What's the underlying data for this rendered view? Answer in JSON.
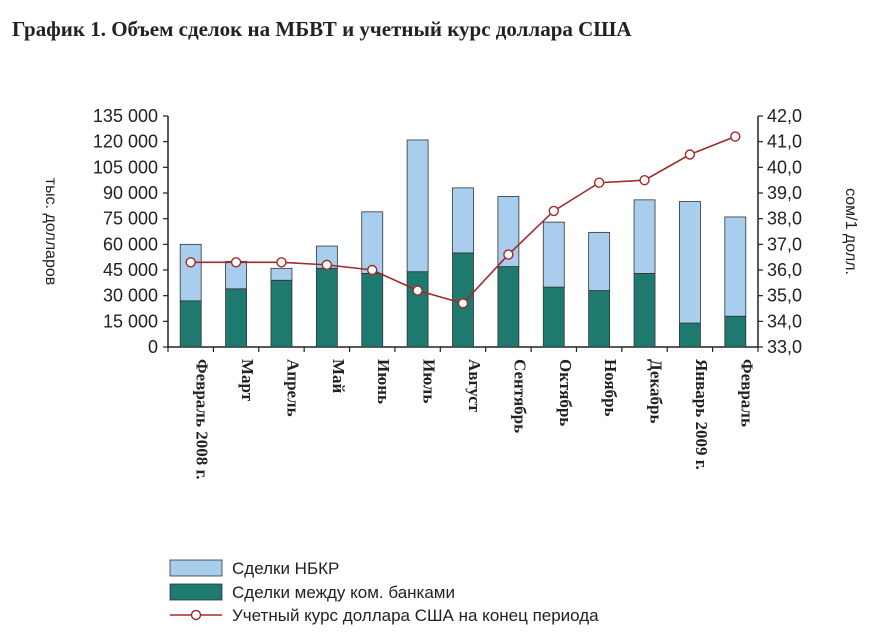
{
  "chart_data": {
    "type": "bar",
    "stacked": true,
    "title": "График 1. Объем сделок на МБВТ и учетный курс доллара США",
    "ylabel_left": "тыс. долларов",
    "ylabel_right": "сом/1 долл.",
    "ylim_left": [
      0,
      135000
    ],
    "yticks_left": [
      0,
      15000,
      30000,
      45000,
      60000,
      75000,
      90000,
      105000,
      120000,
      135000
    ],
    "yticks_left_labels": [
      "0",
      "15 000",
      "30 000",
      "45 000",
      "60 000",
      "75 000",
      "90 000",
      "105 000",
      "120 000",
      "135 000"
    ],
    "ylim_right": [
      33.0,
      42.0
    ],
    "yticks_right_labels": [
      "33,0",
      "34,0",
      "35,0",
      "36,0",
      "37,0",
      "38,0",
      "39,0",
      "40,0",
      "41,0",
      "42,0"
    ],
    "categories": [
      "Февраль 2008 г.",
      "Март",
      "Апрель",
      "Май",
      "Июнь",
      "Июль",
      "Август",
      "Сентябрь",
      "Октябрь",
      "Ноябрь",
      "Декабрь",
      "Январь 2009 г.",
      "Февраль"
    ],
    "series": [
      {
        "name": "Сделки между ком. банками",
        "kind": "bar",
        "color": "#1e7a6e",
        "values": [
          27000,
          34000,
          39000,
          46000,
          43000,
          44000,
          55000,
          47000,
          35000,
          33000,
          43000,
          14000,
          18000
        ]
      },
      {
        "name": "Сделки НБКР",
        "kind": "bar",
        "color": "#a9cdec",
        "values": [
          33000,
          16000,
          7000,
          13000,
          36000,
          77000,
          38000,
          41000,
          38000,
          34000,
          43000,
          71000,
          58000
        ]
      },
      {
        "name": "Учетный курс  доллара США на конец периода",
        "kind": "line",
        "axis": "right",
        "color": "#a12a2a",
        "values": [
          36.3,
          36.3,
          36.3,
          36.2,
          36.0,
          35.2,
          34.7,
          36.6,
          38.3,
          39.4,
          39.5,
          40.5,
          41.2
        ]
      }
    ],
    "legend_position": "bottom-left",
    "grid": false
  }
}
